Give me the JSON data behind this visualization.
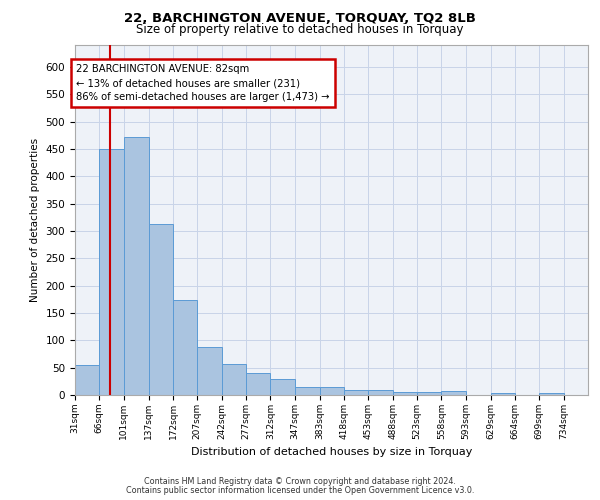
{
  "title1": "22, BARCHINGTON AVENUE, TORQUAY, TQ2 8LB",
  "title2": "Size of property relative to detached houses in Torquay",
  "xlabel": "Distribution of detached houses by size in Torquay",
  "ylabel": "Number of detached properties",
  "footer1": "Contains HM Land Registry data © Crown copyright and database right 2024.",
  "footer2": "Contains public sector information licensed under the Open Government Licence v3.0.",
  "annotation_title": "22 BARCHINGTON AVENUE: 82sqm",
  "annotation_line1": "← 13% of detached houses are smaller (231)",
  "annotation_line2": "86% of semi-detached houses are larger (1,473) →",
  "property_sqm": 82,
  "bar_color": "#aac4e0",
  "bar_edge_color": "#5b9bd5",
  "red_line_color": "#cc0000",
  "annotation_box_color": "#cc0000",
  "grid_color": "#c8d4e8",
  "background_color": "#eef2f8",
  "ylim": [
    0,
    640
  ],
  "yticks": [
    0,
    50,
    100,
    150,
    200,
    250,
    300,
    350,
    400,
    450,
    500,
    550,
    600
  ],
  "bin_labels": [
    "31sqm",
    "66sqm",
    "101sqm",
    "137sqm",
    "172sqm",
    "207sqm",
    "242sqm",
    "277sqm",
    "312sqm",
    "347sqm",
    "383sqm",
    "418sqm",
    "453sqm",
    "488sqm",
    "523sqm",
    "558sqm",
    "593sqm",
    "629sqm",
    "664sqm",
    "699sqm",
    "734sqm"
  ],
  "bar_values": [
    55,
    450,
    472,
    312,
    174,
    88,
    57,
    41,
    30,
    15,
    15,
    10,
    10,
    6,
    6,
    8,
    0,
    4,
    0,
    4,
    0
  ],
  "bin_edges": [
    31,
    66,
    101,
    137,
    172,
    207,
    242,
    277,
    312,
    347,
    383,
    418,
    453,
    488,
    523,
    558,
    593,
    629,
    664,
    699,
    734,
    769
  ]
}
